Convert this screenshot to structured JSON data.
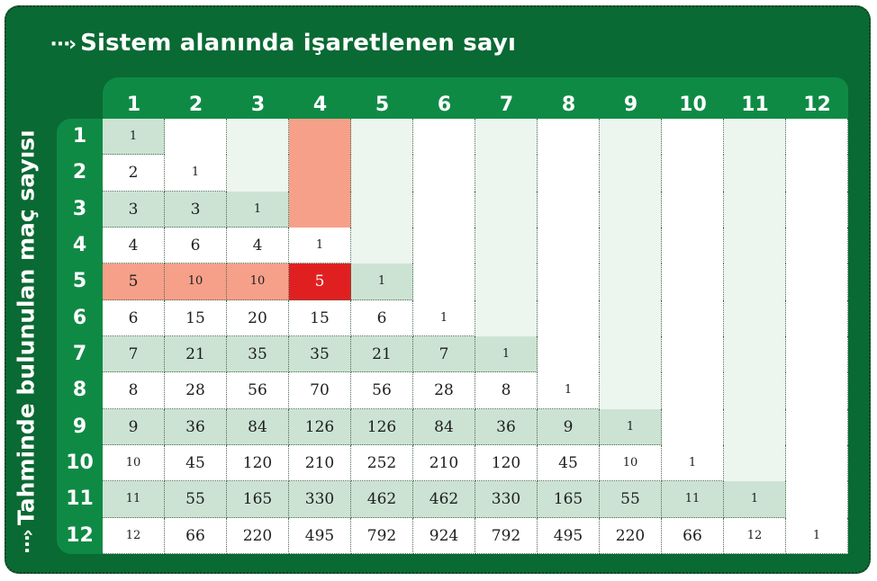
{
  "header": {
    "arrow_glyph": "⋯›",
    "title": "Sistem alanında işaretlenen sayı",
    "row_axis_title": "Tahminde bulunulan maç sayısı"
  },
  "colors": {
    "panel": "#0a6a33",
    "header_band": "#0f8a45",
    "shaded_row": "#cce3d3",
    "empty_area": "#edf5ef",
    "highlight": "#f6a089",
    "selected": "#e02020"
  },
  "column_headers": [
    "1",
    "2",
    "3",
    "4",
    "5",
    "6",
    "7",
    "8",
    "9",
    "10",
    "11",
    "12"
  ],
  "row_headers": [
    "1",
    "2",
    "3",
    "4",
    "5",
    "6",
    "7",
    "8",
    "9",
    "10",
    "11",
    "12"
  ],
  "rows": [
    [
      "1"
    ],
    [
      "2",
      "1"
    ],
    [
      "3",
      "3",
      "1"
    ],
    [
      "4",
      "6",
      "4",
      "1"
    ],
    [
      "5",
      "10",
      "10",
      "5",
      "1"
    ],
    [
      "6",
      "15",
      "20",
      "15",
      "6",
      "1"
    ],
    [
      "7",
      "21",
      "35",
      "35",
      "21",
      "7",
      "1"
    ],
    [
      "8",
      "28",
      "56",
      "70",
      "56",
      "28",
      "8",
      "1"
    ],
    [
      "9",
      "36",
      "84",
      "126",
      "126",
      "84",
      "36",
      "9",
      "1"
    ],
    [
      "10",
      "45",
      "120",
      "210",
      "252",
      "210",
      "120",
      "45",
      "10",
      "1"
    ],
    [
      "11",
      "55",
      "165",
      "330",
      "462",
      "462",
      "330",
      "165",
      "55",
      "11",
      "1"
    ],
    [
      "12",
      "66",
      "220",
      "495",
      "792",
      "924",
      "792",
      "495",
      "220",
      "66",
      "12",
      "1"
    ]
  ],
  "highlight": {
    "selected_row": 5,
    "selected_column": 4
  }
}
